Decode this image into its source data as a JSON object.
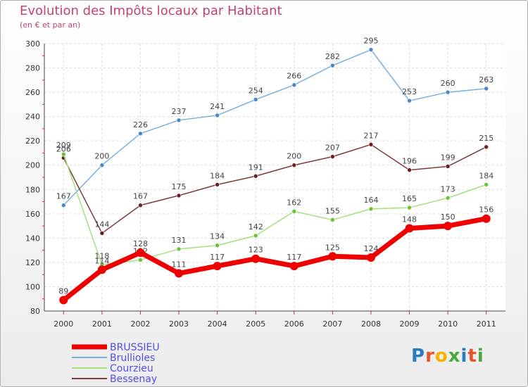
{
  "title": "Evolution des Impôts locaux par Habitant",
  "subtitle": "(en € et par an)",
  "logo": {
    "text": "Proxiti",
    "colors": [
      "#2b7bc0",
      "#e8552b",
      "#f4b300",
      "#49a941",
      "#2b7bc0",
      "#e8552b",
      "#49a941"
    ]
  },
  "chart_data": {
    "type": "line",
    "x": [
      "2000",
      "2001",
      "2002",
      "2003",
      "2004",
      "2005",
      "2006",
      "2007",
      "2008",
      "2009",
      "2010",
      "2011"
    ],
    "ylim": [
      80,
      300
    ],
    "yticks": [
      80,
      100,
      120,
      140,
      160,
      180,
      200,
      220,
      240,
      260,
      280,
      300
    ],
    "grid": true,
    "legend_position": "bottom-left",
    "series": [
      {
        "name": "Brullioles",
        "color": "#7ab0de",
        "marker": "#4a86c8",
        "width": 1.5,
        "labels": true,
        "values": [
          167,
          200,
          226,
          237,
          241,
          254,
          266,
          282,
          295,
          253,
          260,
          263
        ]
      },
      {
        "name": "Bessenay",
        "color": "#7d3a3a",
        "marker": "#6a2020",
        "width": 1.5,
        "labels": true,
        "values": [
          206,
          144,
          167,
          175,
          184,
          191,
          200,
          207,
          217,
          196,
          199,
          215
        ]
      },
      {
        "name": "Courzieu",
        "color": "#a6e07a",
        "marker": "#6cc236",
        "width": 1.5,
        "labels": true,
        "values": [
          209,
          118,
          122,
          131,
          134,
          142,
          162,
          155,
          164,
          165,
          173,
          184
        ]
      },
      {
        "name": "BRUSSIEU",
        "color": "#ee0000",
        "marker": "#ee0000",
        "width": 7,
        "labels": true,
        "values": [
          89,
          114,
          128,
          111,
          117,
          123,
          117,
          125,
          124,
          148,
          150,
          156
        ]
      }
    ],
    "legend_order": [
      "BRUSSIEU",
      "Brullioles",
      "Courzieu",
      "Bessenay"
    ],
    "legend_text_color": "#5050e8"
  }
}
